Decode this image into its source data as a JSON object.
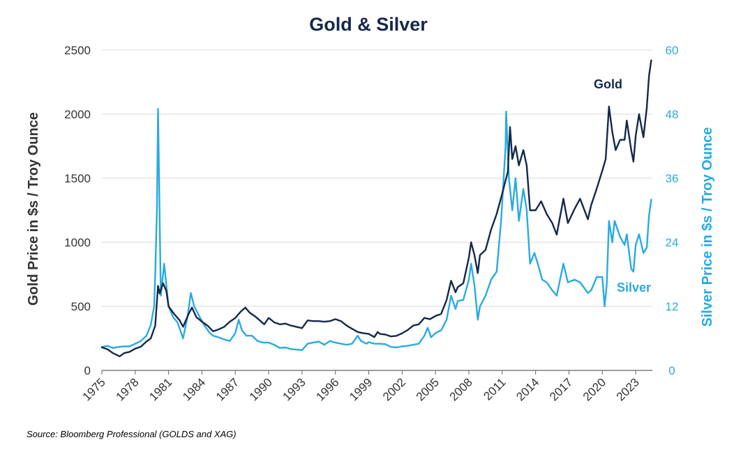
{
  "chart_data": {
    "type": "line",
    "title": "Gold & Silver",
    "x": {
      "tick_labels": [
        "1975",
        "1978",
        "1981",
        "1984",
        "1987",
        "1990",
        "1993",
        "1996",
        "1999",
        "2002",
        "2005",
        "2008",
        "2011",
        "2014",
        "2017",
        "2020",
        "2023"
      ],
      "range": [
        1975,
        2024.5
      ]
    },
    "y_left": {
      "label": "Gold Price in $s / Troy Ounce",
      "range": [
        0,
        2500
      ],
      "ticks": [
        0,
        500,
        1000,
        1500,
        2000,
        2500
      ],
      "tick_labels": [
        "0",
        "500",
        "1000",
        "1500",
        "2000",
        "2500"
      ]
    },
    "y_right": {
      "label": "Silver Price in $s / Troy Ounce",
      "range": [
        0,
        60
      ],
      "ticks": [
        0,
        12,
        24,
        36,
        48,
        60
      ],
      "tick_labels": [
        "0",
        "12",
        "24",
        "36",
        "48",
        "60"
      ]
    },
    "grid": "horizontal",
    "series": [
      {
        "name": "Gold",
        "axis": "left",
        "color": "#14284b",
        "points": [
          [
            1975.0,
            180
          ],
          [
            1975.5,
            165
          ],
          [
            1976.0,
            135
          ],
          [
            1976.6,
            110
          ],
          [
            1977.0,
            135
          ],
          [
            1977.5,
            145
          ],
          [
            1978.0,
            170
          ],
          [
            1978.5,
            185
          ],
          [
            1979.0,
            225
          ],
          [
            1979.4,
            250
          ],
          [
            1979.8,
            350
          ],
          [
            1980.05,
            660
          ],
          [
            1980.2,
            600
          ],
          [
            1980.5,
            680
          ],
          [
            1980.8,
            620
          ],
          [
            1981.0,
            500
          ],
          [
            1981.5,
            440
          ],
          [
            1982.0,
            390
          ],
          [
            1982.3,
            340
          ],
          [
            1982.8,
            440
          ],
          [
            1983.1,
            490
          ],
          [
            1983.5,
            415
          ],
          [
            1984.0,
            380
          ],
          [
            1984.5,
            350
          ],
          [
            1985.0,
            305
          ],
          [
            1985.5,
            320
          ],
          [
            1986.0,
            340
          ],
          [
            1986.5,
            380
          ],
          [
            1987.0,
            410
          ],
          [
            1987.5,
            460
          ],
          [
            1987.9,
            490
          ],
          [
            1988.3,
            450
          ],
          [
            1988.8,
            420
          ],
          [
            1989.2,
            390
          ],
          [
            1989.6,
            360
          ],
          [
            1990.0,
            410
          ],
          [
            1990.5,
            375
          ],
          [
            1991.0,
            360
          ],
          [
            1991.5,
            365
          ],
          [
            1992.0,
            350
          ],
          [
            1992.5,
            340
          ],
          [
            1993.0,
            330
          ],
          [
            1993.5,
            390
          ],
          [
            1994.0,
            385
          ],
          [
            1994.5,
            385
          ],
          [
            1995.0,
            380
          ],
          [
            1995.5,
            385
          ],
          [
            1996.0,
            400
          ],
          [
            1996.5,
            385
          ],
          [
            1997.0,
            350
          ],
          [
            1997.5,
            325
          ],
          [
            1998.0,
            300
          ],
          [
            1998.5,
            290
          ],
          [
            1999.0,
            285
          ],
          [
            1999.5,
            260
          ],
          [
            1999.8,
            300
          ],
          [
            2000.0,
            285
          ],
          [
            2000.5,
            280
          ],
          [
            2001.0,
            265
          ],
          [
            2001.5,
            270
          ],
          [
            2002.0,
            290
          ],
          [
            2002.5,
            315
          ],
          [
            2003.0,
            350
          ],
          [
            2003.5,
            360
          ],
          [
            2004.0,
            410
          ],
          [
            2004.5,
            400
          ],
          [
            2005.0,
            425
          ],
          [
            2005.5,
            440
          ],
          [
            2006.0,
            550
          ],
          [
            2006.4,
            700
          ],
          [
            2006.8,
            610
          ],
          [
            2007.0,
            650
          ],
          [
            2007.5,
            680
          ],
          [
            2008.0,
            880
          ],
          [
            2008.2,
            1000
          ],
          [
            2008.5,
            900
          ],
          [
            2008.8,
            760
          ],
          [
            2009.0,
            900
          ],
          [
            2009.5,
            940
          ],
          [
            2010.0,
            1100
          ],
          [
            2010.5,
            1220
          ],
          [
            2011.0,
            1380
          ],
          [
            2011.5,
            1550
          ],
          [
            2011.7,
            1900
          ],
          [
            2011.9,
            1650
          ],
          [
            2012.2,
            1750
          ],
          [
            2012.5,
            1600
          ],
          [
            2012.9,
            1720
          ],
          [
            2013.2,
            1600
          ],
          [
            2013.5,
            1250
          ],
          [
            2014.0,
            1250
          ],
          [
            2014.5,
            1320
          ],
          [
            2015.0,
            1220
          ],
          [
            2015.5,
            1150
          ],
          [
            2015.9,
            1060
          ],
          [
            2016.5,
            1340
          ],
          [
            2016.9,
            1150
          ],
          [
            2017.5,
            1260
          ],
          [
            2018.0,
            1340
          ],
          [
            2018.7,
            1180
          ],
          [
            2019.0,
            1290
          ],
          [
            2019.5,
            1420
          ],
          [
            2020.0,
            1560
          ],
          [
            2020.3,
            1650
          ],
          [
            2020.6,
            2060
          ],
          [
            2020.9,
            1860
          ],
          [
            2021.2,
            1720
          ],
          [
            2021.6,
            1800
          ],
          [
            2022.0,
            1800
          ],
          [
            2022.2,
            1950
          ],
          [
            2022.6,
            1720
          ],
          [
            2022.8,
            1630
          ],
          [
            2023.0,
            1830
          ],
          [
            2023.3,
            2000
          ],
          [
            2023.7,
            1820
          ],
          [
            2024.0,
            2050
          ],
          [
            2024.2,
            2300
          ],
          [
            2024.4,
            2420
          ]
        ]
      },
      {
        "name": "Silver",
        "axis": "right",
        "color": "#29aae1",
        "points": [
          [
            1975.0,
            4.4
          ],
          [
            1975.5,
            4.6
          ],
          [
            1976.0,
            4.2
          ],
          [
            1976.5,
            4.4
          ],
          [
            1977.0,
            4.5
          ],
          [
            1977.5,
            4.5
          ],
          [
            1978.0,
            5.0
          ],
          [
            1978.5,
            5.5
          ],
          [
            1979.0,
            6.5
          ],
          [
            1979.4,
            8.5
          ],
          [
            1979.7,
            12.0
          ],
          [
            1979.8,
            18.0
          ],
          [
            1979.95,
            30.0
          ],
          [
            1980.05,
            49.0
          ],
          [
            1980.15,
            35.0
          ],
          [
            1980.3,
            14.0
          ],
          [
            1980.6,
            20.0
          ],
          [
            1980.8,
            16.0
          ],
          [
            1981.0,
            12.0
          ],
          [
            1981.4,
            10.0
          ],
          [
            1981.8,
            9.0
          ],
          [
            1982.3,
            6.0
          ],
          [
            1982.7,
            10.0
          ],
          [
            1983.0,
            14.5
          ],
          [
            1983.3,
            12.0
          ],
          [
            1983.8,
            10.0
          ],
          [
            1984.2,
            8.5
          ],
          [
            1984.7,
            7.0
          ],
          [
            1985.0,
            6.5
          ],
          [
            1985.5,
            6.2
          ],
          [
            1986.0,
            5.8
          ],
          [
            1986.5,
            5.5
          ],
          [
            1987.0,
            7.0
          ],
          [
            1987.3,
            9.5
          ],
          [
            1987.6,
            7.5
          ],
          [
            1988.0,
            6.5
          ],
          [
            1988.5,
            6.5
          ],
          [
            1989.0,
            5.5
          ],
          [
            1989.5,
            5.2
          ],
          [
            1990.0,
            5.2
          ],
          [
            1990.5,
            4.8
          ],
          [
            1991.0,
            4.2
          ],
          [
            1991.5,
            4.3
          ],
          [
            1992.0,
            4.0
          ],
          [
            1992.5,
            3.9
          ],
          [
            1993.0,
            3.8
          ],
          [
            1993.5,
            5.0
          ],
          [
            1994.0,
            5.2
          ],
          [
            1994.5,
            5.4
          ],
          [
            1995.0,
            4.8
          ],
          [
            1995.5,
            5.5
          ],
          [
            1996.0,
            5.2
          ],
          [
            1996.5,
            5.0
          ],
          [
            1997.0,
            4.8
          ],
          [
            1997.5,
            5.0
          ],
          [
            1998.0,
            6.5
          ],
          [
            1998.3,
            5.5
          ],
          [
            1998.8,
            5.0
          ],
          [
            1999.0,
            5.3
          ],
          [
            1999.5,
            5.0
          ],
          [
            2000.0,
            5.0
          ],
          [
            2000.5,
            4.9
          ],
          [
            2001.0,
            4.4
          ],
          [
            2001.5,
            4.3
          ],
          [
            2002.0,
            4.5
          ],
          [
            2002.5,
            4.6
          ],
          [
            2003.0,
            4.8
          ],
          [
            2003.5,
            5.0
          ],
          [
            2004.0,
            6.5
          ],
          [
            2004.3,
            8.0
          ],
          [
            2004.6,
            6.2
          ],
          [
            2005.0,
            7.0
          ],
          [
            2005.5,
            7.5
          ],
          [
            2006.0,
            9.5
          ],
          [
            2006.4,
            14.0
          ],
          [
            2006.8,
            11.5
          ],
          [
            2007.0,
            13.0
          ],
          [
            2007.5,
            13.2
          ],
          [
            2008.0,
            17.0
          ],
          [
            2008.2,
            20.0
          ],
          [
            2008.5,
            16.0
          ],
          [
            2008.8,
            9.5
          ],
          [
            2009.0,
            12.0
          ],
          [
            2009.5,
            14.0
          ],
          [
            2010.0,
            17.0
          ],
          [
            2010.5,
            18.5
          ],
          [
            2010.9,
            28.0
          ],
          [
            2011.3,
            42.0
          ],
          [
            2011.35,
            48.5
          ],
          [
            2011.6,
            36.0
          ],
          [
            2011.9,
            30.0
          ],
          [
            2012.2,
            36.0
          ],
          [
            2012.5,
            28.0
          ],
          [
            2012.9,
            34.0
          ],
          [
            2013.2,
            30.0
          ],
          [
            2013.5,
            20.0
          ],
          [
            2013.9,
            22.0
          ],
          [
            2014.2,
            20.0
          ],
          [
            2014.6,
            17.0
          ],
          [
            2015.0,
            16.5
          ],
          [
            2015.5,
            15.0
          ],
          [
            2015.9,
            14.0
          ],
          [
            2016.5,
            20.0
          ],
          [
            2016.9,
            16.5
          ],
          [
            2017.5,
            17.0
          ],
          [
            2018.0,
            16.5
          ],
          [
            2018.7,
            14.5
          ],
          [
            2019.0,
            15.0
          ],
          [
            2019.5,
            17.5
          ],
          [
            2020.0,
            17.5
          ],
          [
            2020.2,
            12.0
          ],
          [
            2020.4,
            16.0
          ],
          [
            2020.6,
            28.0
          ],
          [
            2020.9,
            24.0
          ],
          [
            2021.1,
            28.0
          ],
          [
            2021.6,
            25.0
          ],
          [
            2022.0,
            23.5
          ],
          [
            2022.2,
            25.5
          ],
          [
            2022.6,
            19.0
          ],
          [
            2022.8,
            18.5
          ],
          [
            2023.0,
            23.5
          ],
          [
            2023.3,
            25.5
          ],
          [
            2023.7,
            22.0
          ],
          [
            2024.0,
            23.0
          ],
          [
            2024.2,
            29.0
          ],
          [
            2024.4,
            32.0
          ]
        ]
      }
    ],
    "annotations": [
      "Gold",
      "Silver"
    ],
    "source": "Source: Bloomberg Professional (GOLDS and XAG)"
  }
}
